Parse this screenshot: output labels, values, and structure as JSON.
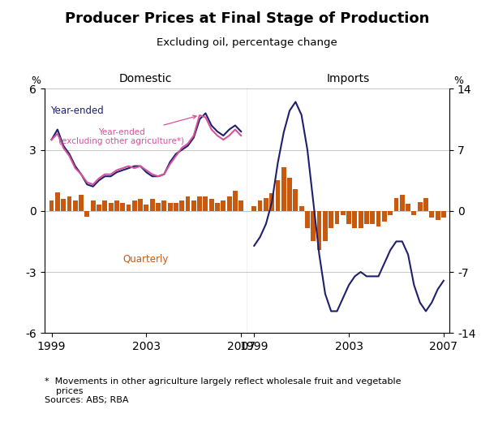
{
  "title": "Producer Prices at Final Stage of Production",
  "subtitle": "Excluding oil, percentage change",
  "footnote": "*  Movements in other agriculture largely reflect wholesale fruit and vegetable\n    prices\nSources: ABS; RBA",
  "chart_data": [
    {
      "type": "bar",
      "title": "Domestic",
      "ylabel": "%",
      "x": [
        1999.0,
        1999.25,
        1999.5,
        1999.75,
        2000.0,
        2000.25,
        2000.5,
        2000.75,
        2001.0,
        2001.25,
        2001.5,
        2001.75,
        2002.0,
        2002.25,
        2002.5,
        2002.75,
        2003.0,
        2003.25,
        2003.5,
        2003.75,
        2004.0,
        2004.25,
        2004.5,
        2004.75,
        2005.0,
        2005.25,
        2005.5,
        2005.75,
        2006.0,
        2006.25,
        2006.5,
        2006.75,
        2007.0
      ],
      "xlim": [
        1998.7,
        2007.25
      ],
      "xticks": [
        1999,
        2003,
        2007
      ],
      "ylim": [
        -6,
        6
      ],
      "yticks": [
        -6,
        -3,
        0,
        3,
        6
      ],
      "grid": true,
      "series": [
        {
          "name": "Quarterly",
          "type": "bar",
          "color": "#c85a10",
          "values": [
            0.5,
            0.9,
            0.6,
            0.7,
            0.5,
            0.8,
            -0.3,
            0.5,
            0.3,
            0.5,
            0.4,
            0.5,
            0.4,
            0.3,
            0.5,
            0.6,
            0.3,
            0.6,
            0.4,
            0.5,
            0.4,
            0.4,
            0.5,
            0.7,
            0.5,
            0.7,
            0.7,
            0.6,
            0.4,
            0.5,
            0.7,
            1.0,
            0.5
          ]
        },
        {
          "name": "Year-ended",
          "type": "line",
          "color": "#1f1f6e",
          "values": [
            3.5,
            4.0,
            3.2,
            2.8,
            2.2,
            1.8,
            1.3,
            1.2,
            1.5,
            1.7,
            1.7,
            1.9,
            2.0,
            2.1,
            2.2,
            2.2,
            1.9,
            1.7,
            1.7,
            1.8,
            2.4,
            2.8,
            3.0,
            3.2,
            3.6,
            4.5,
            4.8,
            4.2,
            3.9,
            3.7,
            4.0,
            4.2,
            3.9
          ]
        },
        {
          "name": "Year-ended\n(excluding other agriculture*)",
          "type": "line",
          "color": "#d4539a",
          "values": [
            3.5,
            3.8,
            3.1,
            2.7,
            2.1,
            1.8,
            1.4,
            1.3,
            1.6,
            1.8,
            1.8,
            2.0,
            2.1,
            2.2,
            2.1,
            2.2,
            2.0,
            1.8,
            1.7,
            1.8,
            2.3,
            2.7,
            3.1,
            3.3,
            3.7,
            4.7,
            4.6,
            4.0,
            3.7,
            3.5,
            3.7,
            4.0,
            3.7
          ]
        }
      ]
    },
    {
      "type": "bar",
      "title": "Imports",
      "ylabel": "%",
      "x": [
        1999.0,
        1999.25,
        1999.5,
        1999.75,
        2000.0,
        2000.25,
        2000.5,
        2000.75,
        2001.0,
        2001.25,
        2001.5,
        2001.75,
        2002.0,
        2002.25,
        2002.5,
        2002.75,
        2003.0,
        2003.25,
        2003.5,
        2003.75,
        2004.0,
        2004.25,
        2004.5,
        2004.75,
        2005.0,
        2005.25,
        2005.5,
        2005.75,
        2006.0,
        2006.25,
        2006.5,
        2006.75,
        2007.0
      ],
      "xlim": [
        1998.7,
        2007.25
      ],
      "xticks": [
        1999,
        2003,
        2007
      ],
      "ylim": [
        -14,
        14
      ],
      "yticks": [
        -14,
        -7,
        0,
        7,
        14
      ],
      "grid": true,
      "series": [
        {
          "type": "bar",
          "color": "#c85a10",
          "values": [
            0.5,
            1.2,
            1.5,
            2.0,
            3.5,
            5.0,
            3.8,
            2.5,
            0.5,
            -2.0,
            -3.5,
            -4.5,
            -3.5,
            -2.0,
            -1.5,
            -0.5,
            -1.5,
            -2.0,
            -2.0,
            -1.5,
            -1.5,
            -1.8,
            -1.2,
            -0.5,
            1.5,
            1.8,
            0.8,
            -0.5,
            1.0,
            1.5,
            -0.8,
            -1.0,
            -0.8
          ]
        },
        {
          "type": "line",
          "color": "#1f1f6e",
          "values": [
            -4.0,
            -3.0,
            -1.5,
            1.0,
            5.5,
            9.0,
            11.5,
            12.5,
            11.0,
            7.0,
            1.0,
            -5.0,
            -9.5,
            -11.5,
            -11.5,
            -10.0,
            -8.5,
            -7.5,
            -7.0,
            -7.5,
            -7.5,
            -7.5,
            -6.0,
            -4.5,
            -3.5,
            -3.5,
            -5.0,
            -8.5,
            -10.5,
            -11.5,
            -10.5,
            -9.0,
            -8.0
          ]
        }
      ]
    }
  ]
}
